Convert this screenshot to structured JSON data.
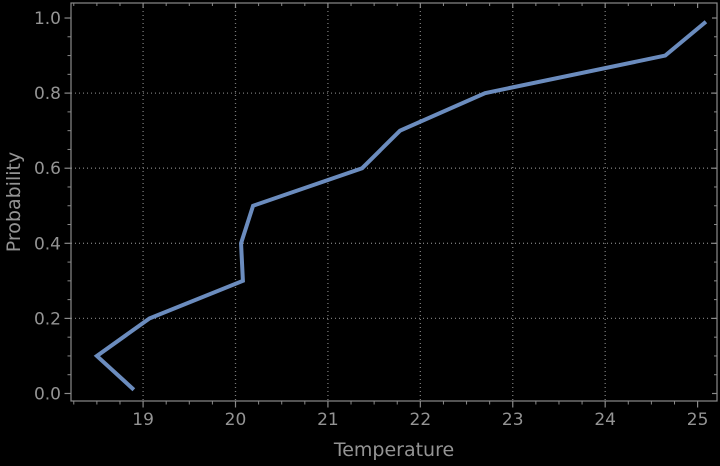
{
  "chart_data": {
    "type": "line",
    "title": "",
    "xlabel": "Temperature",
    "ylabel": "Probability",
    "x": [
      18.9,
      18.5,
      19.07,
      20.08,
      20.06,
      20.19,
      21.37,
      21.78,
      22.7,
      24.65,
      25.09
    ],
    "y": [
      0.01,
      0.1,
      0.2,
      0.3,
      0.4,
      0.5,
      0.6,
      0.7,
      0.8,
      0.9,
      0.99
    ],
    "xlim": [
      18.22,
      25.21
    ],
    "ylim": [
      -0.02,
      1.04
    ],
    "x_ticks": [
      19,
      20,
      21,
      22,
      23,
      24,
      25
    ],
    "x_tick_labels": [
      "19",
      "20",
      "21",
      "22",
      "23",
      "24",
      "25"
    ],
    "y_ticks": [
      0.0,
      0.2,
      0.4,
      0.6,
      0.8,
      1.0
    ],
    "y_tick_labels": [
      "0.0",
      "0.2",
      "0.4",
      "0.6",
      "0.8",
      "1.0"
    ],
    "x_minor_step": 0.25,
    "y_minor_step": 0.05,
    "grid": {
      "style": "dotted",
      "x_lines": [
        19,
        20,
        21,
        22,
        23,
        24
      ],
      "y_lines": [
        0.2,
        0.4,
        0.6,
        0.8
      ]
    },
    "legend": "none",
    "colors": {
      "background": "#000000",
      "line": "#6b8cbe",
      "grid": "#777777",
      "spine": "#8a8a8a",
      "text": "#949494"
    },
    "line_width": 4
  }
}
